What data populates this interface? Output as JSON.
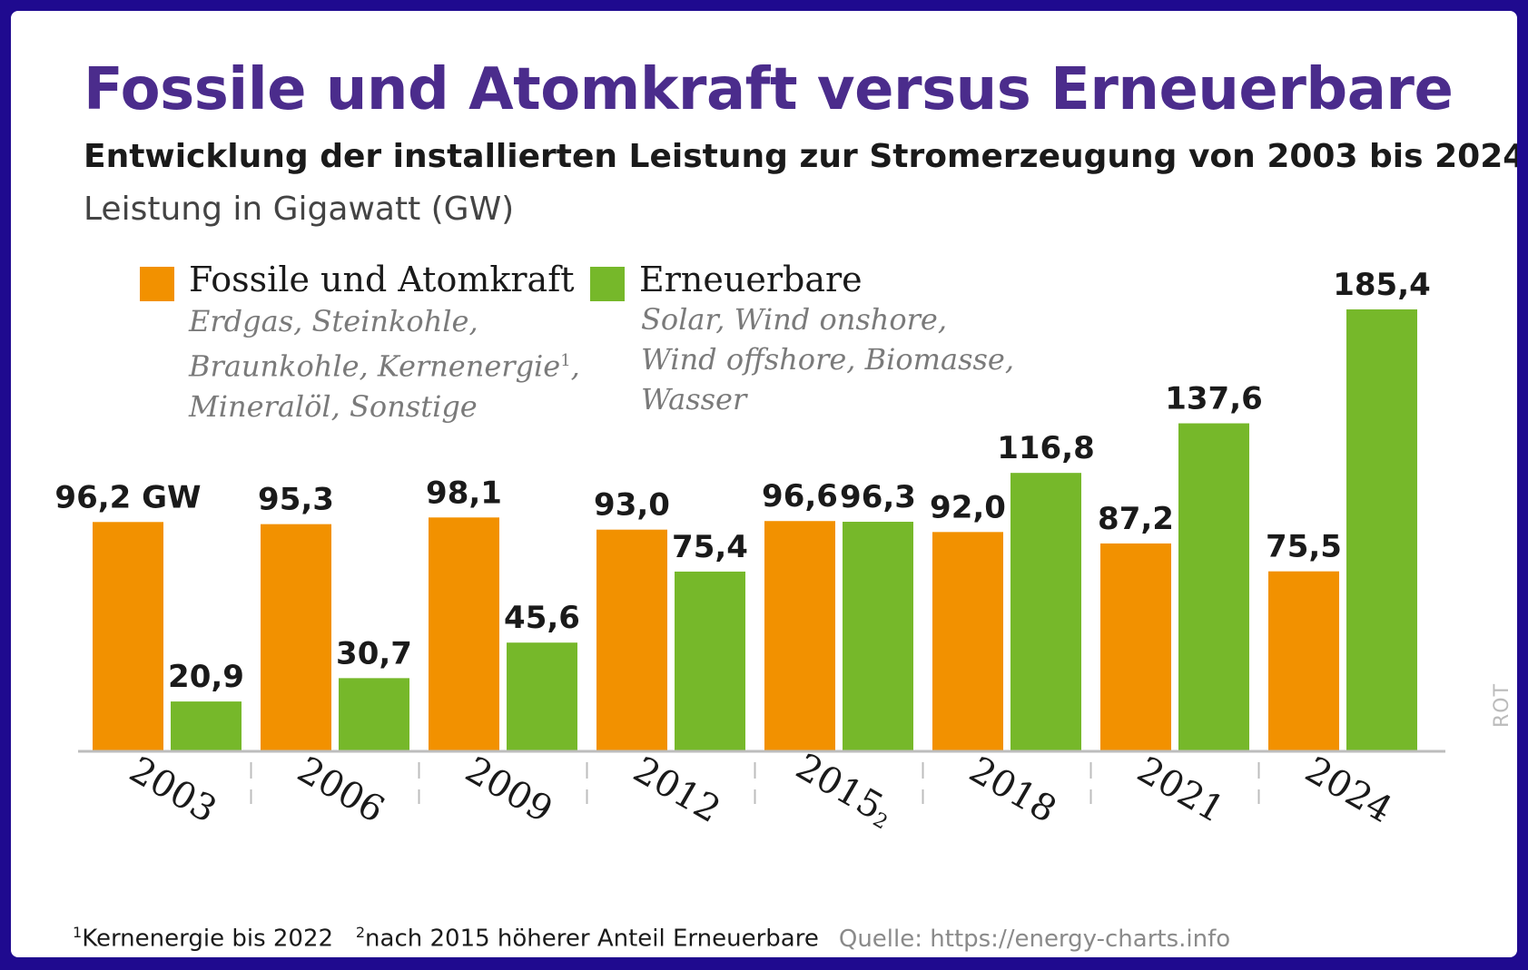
{
  "title": "Fossile und Atomkraft versus Erneuerbare",
  "subtitle": "Entwicklung der installierten Leistung zur Stromerzeugung von 2003 bis 2024",
  "unit_label": "Leistung in Gigawatt (GW)",
  "legend": {
    "fossil": {
      "label": "Fossile und Atomkraft",
      "desc_line1": "Erdgas, Steinkohle,",
      "desc_line2": "Braunkohle, Kernenergie",
      "desc_line2_sup": "1",
      "desc_line2_tail": ",",
      "desc_line3": "Mineralöl, Sonstige"
    },
    "renewable": {
      "label": "Erneuerbare",
      "desc_line1": "Solar, Wind onshore,",
      "desc_line2": "Wind offshore, Biomasse,",
      "desc_line3": "Wasser"
    }
  },
  "footnotes": {
    "note1_num": "1",
    "note1": "Kernenergie bis 2022",
    "note2_num": "2",
    "note2": "nach 2015 höherer Anteil Erneuerbare",
    "source": "Quelle: https://energy-charts.info"
  },
  "credit": "ROT",
  "colors": {
    "fossil": "#f29100",
    "renewable": "#76b82a",
    "title": "#4b2c8c",
    "axis": "#bdbdbd"
  },
  "chart_data": {
    "type": "bar",
    "title": "Fossile und Atomkraft versus Erneuerbare",
    "ylabel": "Leistung in Gigawatt (GW)",
    "ylim": [
      0,
      200
    ],
    "categories": [
      "2003",
      "2006",
      "2009",
      "2012",
      "2015",
      "2018",
      "2021",
      "2024"
    ],
    "category_sup": [
      "",
      "",
      "",
      "",
      "2",
      "",
      "",
      ""
    ],
    "series": [
      {
        "name": "Fossile und Atomkraft",
        "values": [
          96.2,
          95.3,
          98.1,
          93.0,
          96.6,
          92.0,
          87.2,
          75.5
        ],
        "labels": [
          "96,2 GW",
          "95,3",
          "98,1",
          "93,0",
          "96,6",
          "92,0",
          "87,2",
          "75,5"
        ]
      },
      {
        "name": "Erneuerbare",
        "values": [
          20.9,
          30.7,
          45.6,
          75.4,
          96.3,
          116.8,
          137.6,
          185.4
        ],
        "labels": [
          "20,9",
          "30,7",
          "45,6",
          "75,4",
          "96,3",
          "116,8",
          "137,6",
          "185,4"
        ]
      }
    ]
  }
}
